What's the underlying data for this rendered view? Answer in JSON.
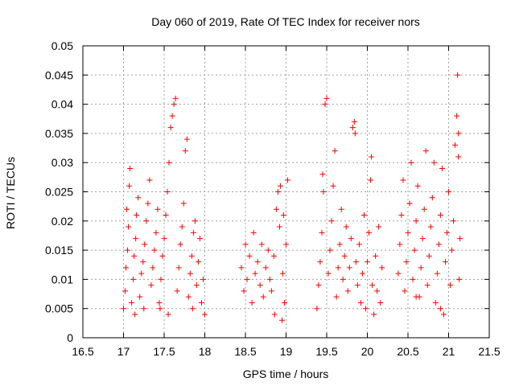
{
  "chart_data": {
    "type": "scatter",
    "title": "Day 060 of 2019, Rate Of TEC Index for receiver nors",
    "xlabel": "GPS time / hours",
    "ylabel": "ROTI / TECUs",
    "xlim": [
      16.5,
      21.5
    ],
    "ylim": [
      0,
      0.05
    ],
    "xticks": [
      "16.5",
      "17",
      "17.5",
      "18",
      "18.5",
      "19",
      "19.5",
      "20",
      "20.5",
      "21",
      "21.5"
    ],
    "yticks": [
      "0",
      "0.005",
      "0.01",
      "0.015",
      "0.02",
      "0.025",
      "0.03",
      "0.035",
      "0.04",
      "0.045",
      "0.05"
    ],
    "grid": true,
    "marker": "plus",
    "color": "#ff0000",
    "series": [
      {
        "name": "nors",
        "points": [
          [
            17.0,
            0.005
          ],
          [
            17.02,
            0.008
          ],
          [
            17.03,
            0.012
          ],
          [
            17.05,
            0.015
          ],
          [
            17.06,
            0.019
          ],
          [
            17.04,
            0.022
          ],
          [
            17.07,
            0.026
          ],
          [
            17.08,
            0.029
          ],
          [
            17.1,
            0.006
          ],
          [
            17.12,
            0.01
          ],
          [
            17.13,
            0.014
          ],
          [
            17.15,
            0.017
          ],
          [
            17.16,
            0.021
          ],
          [
            17.18,
            0.024
          ],
          [
            17.2,
            0.007
          ],
          [
            17.22,
            0.011
          ],
          [
            17.24,
            0.013
          ],
          [
            17.26,
            0.016
          ],
          [
            17.28,
            0.02
          ],
          [
            17.3,
            0.023
          ],
          [
            17.32,
            0.027
          ],
          [
            17.34,
            0.009
          ],
          [
            17.36,
            0.012
          ],
          [
            17.38,
            0.015
          ],
          [
            17.4,
            0.018
          ],
          [
            17.42,
            0.022
          ],
          [
            17.44,
            0.006
          ],
          [
            17.46,
            0.01
          ],
          [
            17.48,
            0.014
          ],
          [
            17.5,
            0.017
          ],
          [
            17.52,
            0.021
          ],
          [
            17.54,
            0.025
          ],
          [
            17.56,
            0.03
          ],
          [
            17.58,
            0.036
          ],
          [
            17.6,
            0.038
          ],
          [
            17.62,
            0.04
          ],
          [
            17.64,
            0.041
          ],
          [
            17.66,
            0.008
          ],
          [
            17.68,
            0.012
          ],
          [
            17.7,
            0.016
          ],
          [
            17.72,
            0.019
          ],
          [
            17.74,
            0.023
          ],
          [
            17.76,
            0.032
          ],
          [
            17.78,
            0.034
          ],
          [
            17.8,
            0.007
          ],
          [
            17.82,
            0.011
          ],
          [
            17.84,
            0.014
          ],
          [
            17.86,
            0.018
          ],
          [
            17.88,
            0.02
          ],
          [
            17.9,
            0.009
          ],
          [
            17.92,
            0.013
          ],
          [
            17.94,
            0.017
          ],
          [
            17.96,
            0.006
          ],
          [
            17.98,
            0.01
          ],
          [
            18.0,
            0.004
          ],
          [
            17.14,
            0.004
          ],
          [
            17.25,
            0.005
          ],
          [
            17.45,
            0.005
          ],
          [
            17.55,
            0.004
          ],
          [
            17.85,
            0.005
          ],
          [
            18.45,
            0.012
          ],
          [
            18.48,
            0.008
          ],
          [
            18.5,
            0.016
          ],
          [
            18.52,
            0.01
          ],
          [
            18.55,
            0.014
          ],
          [
            18.58,
            0.006
          ],
          [
            18.6,
            0.018
          ],
          [
            18.62,
            0.011
          ],
          [
            18.65,
            0.013
          ],
          [
            18.68,
            0.009
          ],
          [
            18.7,
            0.016
          ],
          [
            18.72,
            0.007
          ],
          [
            18.75,
            0.012
          ],
          [
            18.78,
            0.015
          ],
          [
            18.8,
            0.01
          ],
          [
            18.82,
            0.008
          ],
          [
            18.85,
            0.014
          ],
          [
            18.88,
            0.022
          ],
          [
            18.9,
            0.025
          ],
          [
            18.92,
            0.019
          ],
          [
            18.95,
            0.003
          ],
          [
            18.96,
            0.011
          ],
          [
            18.98,
            0.006
          ],
          [
            19.0,
            0.016
          ],
          [
            18.86,
            0.004
          ],
          [
            18.93,
            0.026
          ],
          [
            19.02,
            0.027
          ],
          [
            18.97,
            0.021
          ],
          [
            19.38,
            0.005
          ],
          [
            19.4,
            0.009
          ],
          [
            19.42,
            0.013
          ],
          [
            19.44,
            0.018
          ],
          [
            19.46,
            0.025
          ],
          [
            19.48,
            0.04
          ],
          [
            19.5,
            0.041
          ],
          [
            19.52,
            0.011
          ],
          [
            19.54,
            0.015
          ],
          [
            19.56,
            0.02
          ],
          [
            19.58,
            0.026
          ],
          [
            19.6,
            0.032
          ],
          [
            19.62,
            0.007
          ],
          [
            19.64,
            0.012
          ],
          [
            19.66,
            0.016
          ],
          [
            19.68,
            0.022
          ],
          [
            19.7,
            0.01
          ],
          [
            19.72,
            0.014
          ],
          [
            19.74,
            0.019
          ],
          [
            19.76,
            0.008
          ],
          [
            19.78,
            0.012
          ],
          [
            19.8,
            0.017
          ],
          [
            19.82,
            0.036
          ],
          [
            19.84,
            0.037
          ],
          [
            19.86,
            0.013
          ],
          [
            19.88,
            0.009
          ],
          [
            19.9,
            0.016
          ],
          [
            19.92,
            0.006
          ],
          [
            19.94,
            0.011
          ],
          [
            19.96,
            0.021
          ],
          [
            19.98,
            0.005
          ],
          [
            20.0,
            0.013
          ],
          [
            20.02,
            0.018
          ],
          [
            20.04,
            0.027
          ],
          [
            20.06,
            0.009
          ],
          [
            20.08,
            0.004
          ],
          [
            20.1,
            0.014
          ],
          [
            20.12,
            0.008
          ],
          [
            20.14,
            0.019
          ],
          [
            20.16,
            0.006
          ],
          [
            20.18,
            0.012
          ],
          [
            19.85,
            0.035
          ],
          [
            19.45,
            0.028
          ],
          [
            20.05,
            0.031
          ],
          [
            20.38,
            0.011
          ],
          [
            20.4,
            0.016
          ],
          [
            20.42,
            0.021
          ],
          [
            20.44,
            0.027
          ],
          [
            20.46,
            0.008
          ],
          [
            20.48,
            0.013
          ],
          [
            20.5,
            0.018
          ],
          [
            20.52,
            0.023
          ],
          [
            20.54,
            0.03
          ],
          [
            20.56,
            0.01
          ],
          [
            20.58,
            0.015
          ],
          [
            20.6,
            0.02
          ],
          [
            20.62,
            0.026
          ],
          [
            20.64,
            0.007
          ],
          [
            20.66,
            0.012
          ],
          [
            20.68,
            0.017
          ],
          [
            20.7,
            0.022
          ],
          [
            20.72,
            0.032
          ],
          [
            20.74,
            0.009
          ],
          [
            20.76,
            0.014
          ],
          [
            20.78,
            0.019
          ],
          [
            20.8,
            0.024
          ],
          [
            20.82,
            0.03
          ],
          [
            20.84,
            0.006
          ],
          [
            20.86,
            0.011
          ],
          [
            20.88,
            0.016
          ],
          [
            20.9,
            0.021
          ],
          [
            20.92,
            0.029
          ],
          [
            20.94,
            0.004
          ],
          [
            20.96,
            0.013
          ],
          [
            20.98,
            0.018
          ],
          [
            21.0,
            0.025
          ],
          [
            21.02,
            0.009
          ],
          [
            21.04,
            0.015
          ],
          [
            21.06,
            0.02
          ],
          [
            21.08,
            0.033
          ],
          [
            21.1,
            0.038
          ],
          [
            21.11,
            0.045
          ],
          [
            21.12,
            0.035
          ],
          [
            21.13,
            0.01
          ],
          [
            21.14,
            0.017
          ],
          [
            21.12,
            0.031
          ],
          [
            20.9,
            0.005
          ],
          [
            20.6,
            0.007
          ]
        ]
      }
    ]
  }
}
